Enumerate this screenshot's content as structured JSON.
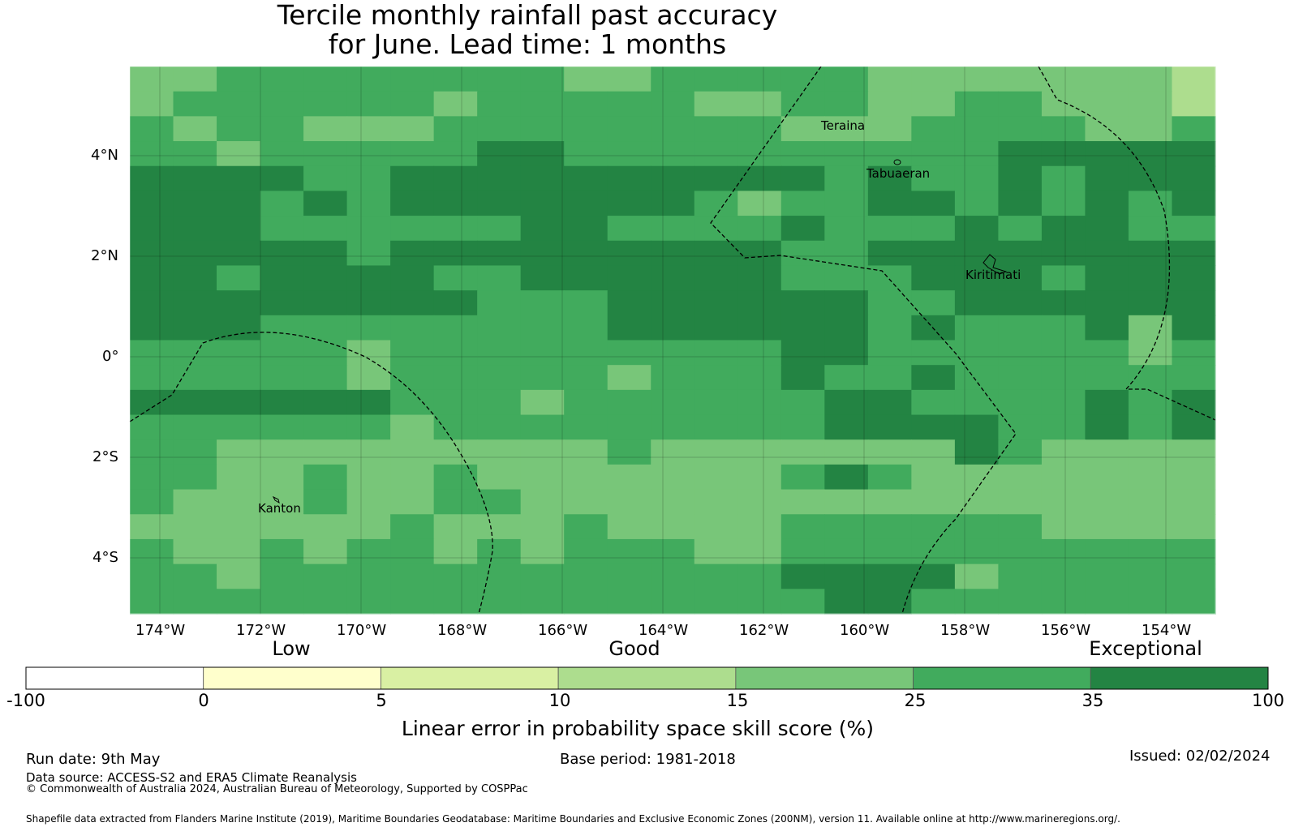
{
  "title": {
    "line1": "Tercile monthly rainfall past accuracy",
    "line2": "for June. Lead time: 1 months"
  },
  "map": {
    "lon_labels": [
      "174°W",
      "172°W",
      "170°W",
      "168°W",
      "166°W",
      "164°W",
      "162°W",
      "160°W",
      "158°W",
      "156°W",
      "154°W"
    ],
    "lat_labels": [
      "4°N",
      "2°N",
      "0°",
      "2°S",
      "4°S"
    ],
    "places": [
      "Teraina",
      "Tabuaeran",
      "Kiritimati",
      "Kanton"
    ],
    "grid": [
      "3344444444334444433333332",
      "3444444344444334433443332",
      "4344333444444443334444334",
      "4434444455444444444455555",
      "5555445555555555454454555",
      "5554545555555434455454545",
      "5554444445544445444545544",
      "5555545555555554455555555",
      "5545555445555554445554555",
      "5555555544455555544555555",
      "5554444444455555545444535",
      "4444434444444445544444434",
      "4444434444434445445444444",
      "5555554443444444554444545",
      "4444443444444444555544545",
      "4433333333343333333543333",
      "4433433433333334543333333",
      "4333433443333333333333333",
      "3333334333433334444443333",
      "4334344343444334444444444",
      "4434444444444445555344444",
      "4444444444444444554444444"
    ],
    "colors": {
      "3": "#78c679",
      "4": "#41ab5d",
      "5": "#238443",
      "2": "#addd8e",
      "border": "#000000"
    }
  },
  "colorbar": {
    "categories": [
      "Low",
      "Good",
      "Exceptional"
    ],
    "ticks": [
      "-100",
      "0",
      "5",
      "10",
      "15",
      "25",
      "35",
      "100"
    ],
    "colors": [
      "#ffffff",
      "#ffffcc",
      "#d9f0a3",
      "#addd8e",
      "#78c679",
      "#41ab5d",
      "#238443"
    ],
    "label": "Linear error in probability space skill score (%)"
  },
  "footer": {
    "run_date": "Run date: 9th May",
    "base_period": "Base period: 1981-2018",
    "issued": "Issued: 02/02/2024",
    "data_source": "Data source: ACCESS-S2 and ERA5 Climate Reanalysis",
    "copyright": "© Commonwealth of Australia 2024, Australian Bureau of Meteorology, Supported by COSPPac",
    "shapefile": "Shapefile data extracted from Flanders Marine Institute (2019), Maritime Boundaries Geodatabase: Maritime Boundaries and Exclusive Economic Zones (200NM), version 11. Available online at http://www.marineregions.org/."
  }
}
